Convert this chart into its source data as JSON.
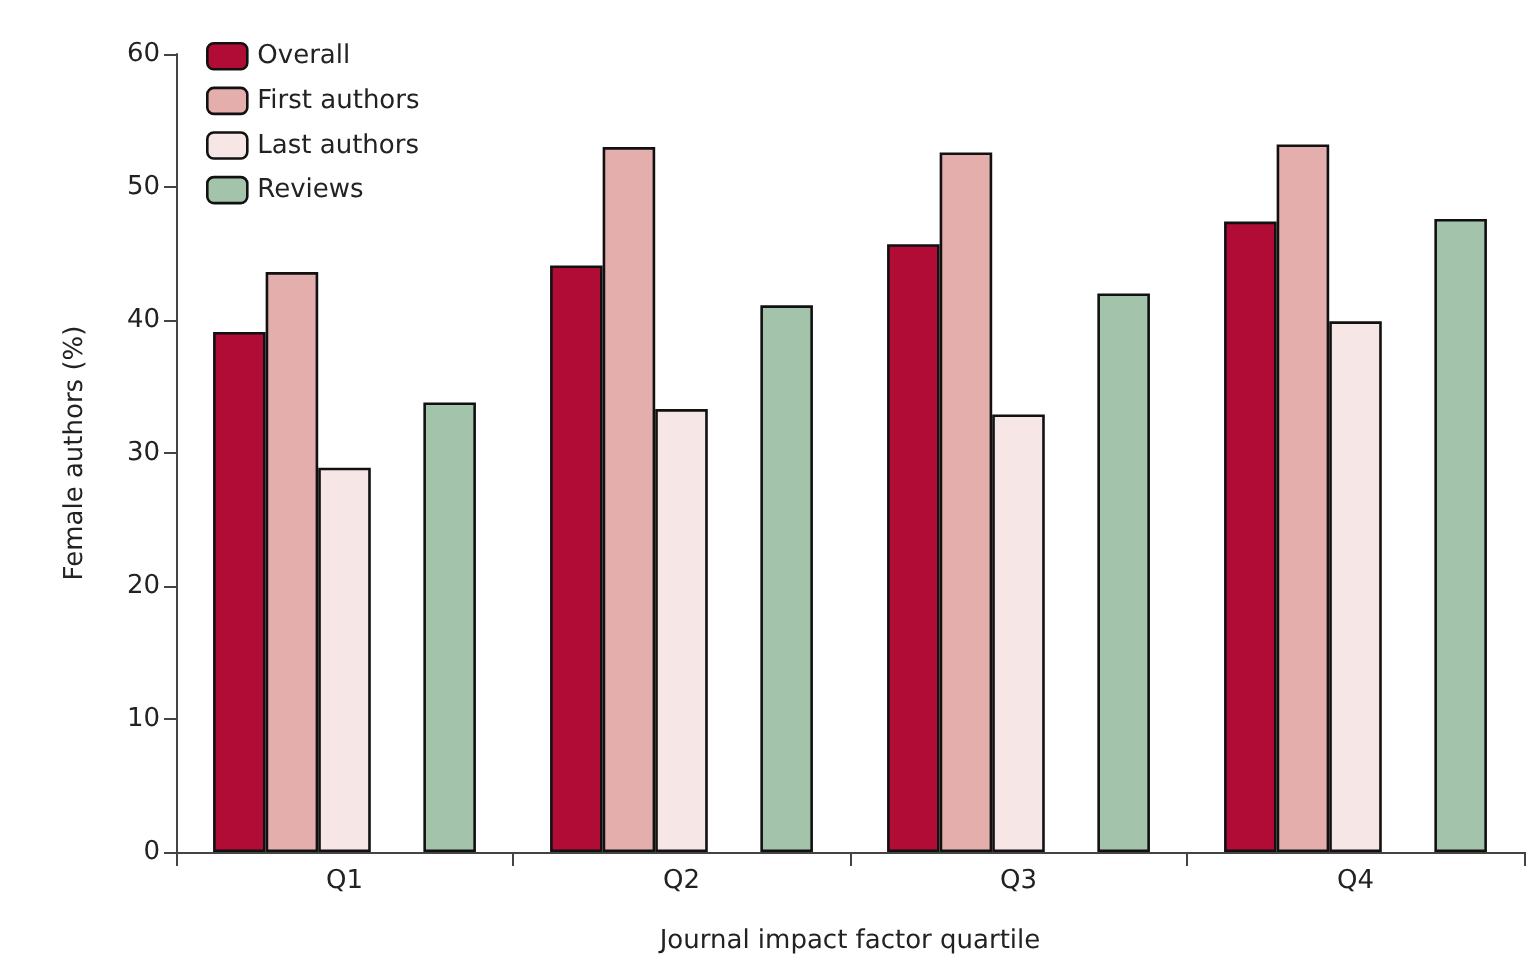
{
  "chart_data": {
    "type": "bar",
    "xlabel": "Journal impact factor quartile",
    "ylabel": "Female authors (%)",
    "categories": [
      "Q1",
      "Q2",
      "Q3",
      "Q4"
    ],
    "series": [
      {
        "name": "Overall",
        "color": "#b00c35",
        "values": [
          39.1,
          44.1,
          45.7,
          47.4
        ]
      },
      {
        "name": "First authors",
        "color": "#e3aeab",
        "values": [
          43.6,
          53.0,
          52.6,
          53.2
        ]
      },
      {
        "name": "Last authors",
        "color": "#f7e6e6",
        "values": [
          28.9,
          33.3,
          32.9,
          39.9
        ]
      },
      {
        "name": "Reviews",
        "color": "#a3c4ab",
        "values": [
          33.8,
          41.1,
          42.0,
          47.6
        ]
      }
    ],
    "ylim": [
      0,
      60
    ],
    "yticks": [
      0,
      10,
      20,
      30,
      40,
      50,
      60
    ],
    "grid": false,
    "legend": "top left"
  }
}
